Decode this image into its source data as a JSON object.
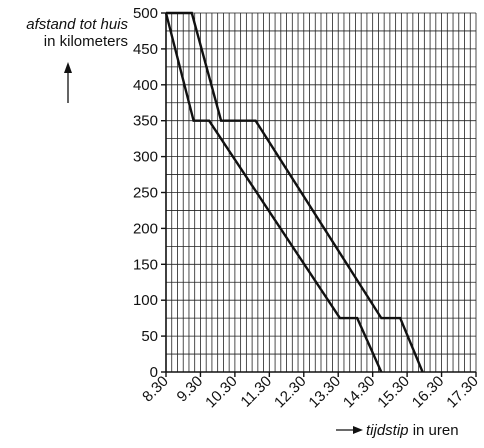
{
  "chart_data": {
    "type": "line",
    "ylabel_italic": "afstand tot huis",
    "ylabel_rest": "in kilometers",
    "xlabel_italic": "tijdstip",
    "xlabel_rest": "in uren",
    "ylim": [
      0,
      500
    ],
    "yticks": [
      0,
      50,
      100,
      150,
      200,
      250,
      300,
      350,
      400,
      450,
      500
    ],
    "ytick_labels": [
      "0",
      "50",
      "100",
      "150",
      "200",
      "250",
      "300",
      "350",
      "400",
      "450",
      "500"
    ],
    "xlim_hours": [
      8.5,
      17.5
    ],
    "xticks_hours": [
      8.5,
      9.5,
      10.5,
      11.5,
      12.5,
      13.5,
      14.5,
      15.5,
      16.5,
      17.5
    ],
    "xtick_labels": [
      "8.30",
      "9.30",
      "10.30",
      "11.30",
      "12.30",
      "13.30",
      "14.30",
      "15.30",
      "16.30",
      "17.30"
    ],
    "grid": true,
    "series": [
      {
        "x": [
          8.5,
          9.3,
          9.75,
          13.55,
          14.05,
          14.75
        ],
        "y": [
          500,
          350,
          350,
          75,
          75,
          0
        ]
      },
      {
        "x": [
          8.5,
          9.25,
          10.1,
          11.1,
          14.75,
          15.3,
          15.95
        ],
        "y": [
          500,
          500,
          350,
          350,
          75,
          75,
          0
        ]
      }
    ],
    "colors": {
      "line": "#111111",
      "grid": "#222222"
    }
  }
}
